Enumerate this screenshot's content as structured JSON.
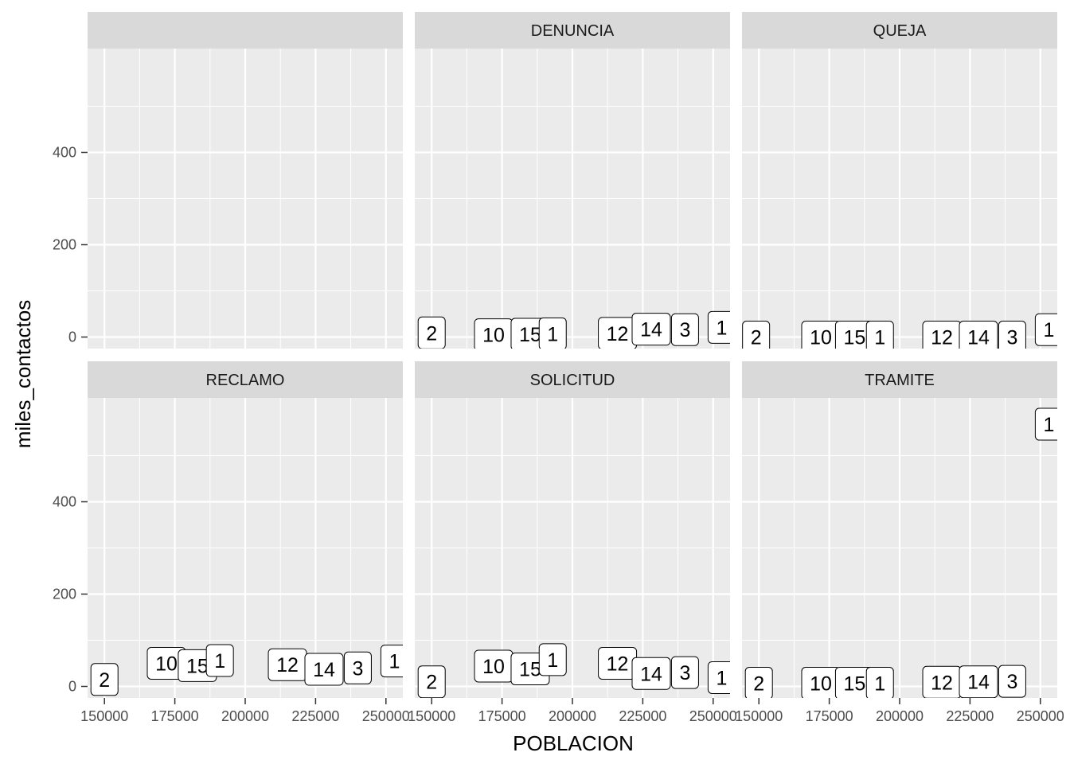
{
  "chart_data": {
    "type": "scatter",
    "geom": "label",
    "xlabel": "POBLACION",
    "ylabel": "miles_contactos",
    "xlim": [
      144000,
      256000
    ],
    "ylim": [
      -25,
      625
    ],
    "x_ticks": [
      150000,
      175000,
      200000,
      225000,
      250000
    ],
    "x_tick_labels": [
      "150000",
      "175000",
      "200000",
      "225000",
      "250000"
    ],
    "y_ticks": [
      0,
      200,
      400
    ],
    "y_tick_labels": [
      "0",
      "200",
      "400"
    ],
    "grid": true,
    "facets": [
      {
        "strip": "",
        "points": []
      },
      {
        "strip": "DENUNCIA",
        "points": [
          {
            "x": 150000,
            "y": 9,
            "label": "2"
          },
          {
            "x": 172000,
            "y": 5,
            "label": "10"
          },
          {
            "x": 185000,
            "y": 6,
            "label": "15"
          },
          {
            "x": 193000,
            "y": 7,
            "label": "1"
          },
          {
            "x": 216000,
            "y": 8,
            "label": "12"
          },
          {
            "x": 228000,
            "y": 17,
            "label": "14"
          },
          {
            "x": 240000,
            "y": 16,
            "label": "3"
          },
          {
            "x": 253000,
            "y": 21,
            "label": "1"
          }
        ]
      },
      {
        "strip": "QUEJA",
        "points": [
          {
            "x": 149000,
            "y": 0,
            "label": "2"
          },
          {
            "x": 172000,
            "y": 0,
            "label": "10"
          },
          {
            "x": 184000,
            "y": 0,
            "label": "15"
          },
          {
            "x": 193000,
            "y": 0,
            "label": "1"
          },
          {
            "x": 215000,
            "y": 0,
            "label": "12"
          },
          {
            "x": 228000,
            "y": 0,
            "label": "14"
          },
          {
            "x": 240000,
            "y": 0,
            "label": "3"
          },
          {
            "x": 253000,
            "y": 16,
            "label": "1"
          }
        ]
      },
      {
        "strip": "RECLAMO",
        "points": [
          {
            "x": 150000,
            "y": 15,
            "label": "2"
          },
          {
            "x": 172000,
            "y": 50,
            "label": "10"
          },
          {
            "x": 183000,
            "y": 45,
            "label": "15"
          },
          {
            "x": 191000,
            "y": 56,
            "label": "1"
          },
          {
            "x": 215000,
            "y": 47,
            "label": "12"
          },
          {
            "x": 228000,
            "y": 37,
            "label": "14"
          },
          {
            "x": 240000,
            "y": 40,
            "label": "3"
          },
          {
            "x": 253000,
            "y": 55,
            "label": "1"
          }
        ]
      },
      {
        "strip": "SOLICITUD",
        "points": [
          {
            "x": 150000,
            "y": 10,
            "label": "2"
          },
          {
            "x": 172000,
            "y": 44,
            "label": "10"
          },
          {
            "x": 185000,
            "y": 38,
            "label": "15"
          },
          {
            "x": 193000,
            "y": 58,
            "label": "1"
          },
          {
            "x": 216000,
            "y": 50,
            "label": "12"
          },
          {
            "x": 228000,
            "y": 28,
            "label": "14"
          },
          {
            "x": 240000,
            "y": 30,
            "label": "3"
          },
          {
            "x": 253000,
            "y": 19,
            "label": "1"
          }
        ]
      },
      {
        "strip": "TRAMITE",
        "points": [
          {
            "x": 150000,
            "y": 7,
            "label": "2"
          },
          {
            "x": 172000,
            "y": 7,
            "label": "10"
          },
          {
            "x": 184000,
            "y": 7,
            "label": "15"
          },
          {
            "x": 193000,
            "y": 7,
            "label": "1"
          },
          {
            "x": 215000,
            "y": 9,
            "label": "12"
          },
          {
            "x": 228000,
            "y": 10,
            "label": "14"
          },
          {
            "x": 240000,
            "y": 11,
            "label": "3"
          },
          {
            "x": 253000,
            "y": 568,
            "label": "1"
          }
        ]
      }
    ]
  },
  "colors": {
    "panel_background": "#ebebeb",
    "grid_line": "#ffffff",
    "strip_background": "#d9d9d9",
    "label_fill": "#ffffff",
    "label_border": "#000000"
  }
}
